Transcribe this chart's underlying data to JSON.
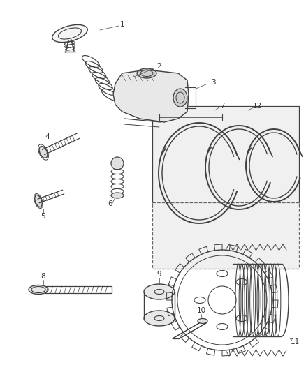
{
  "background_color": "#ffffff",
  "line_color": "#404040",
  "figsize": [
    4.39,
    5.33
  ],
  "dpi": 100,
  "label_fontsize": 7.5
}
